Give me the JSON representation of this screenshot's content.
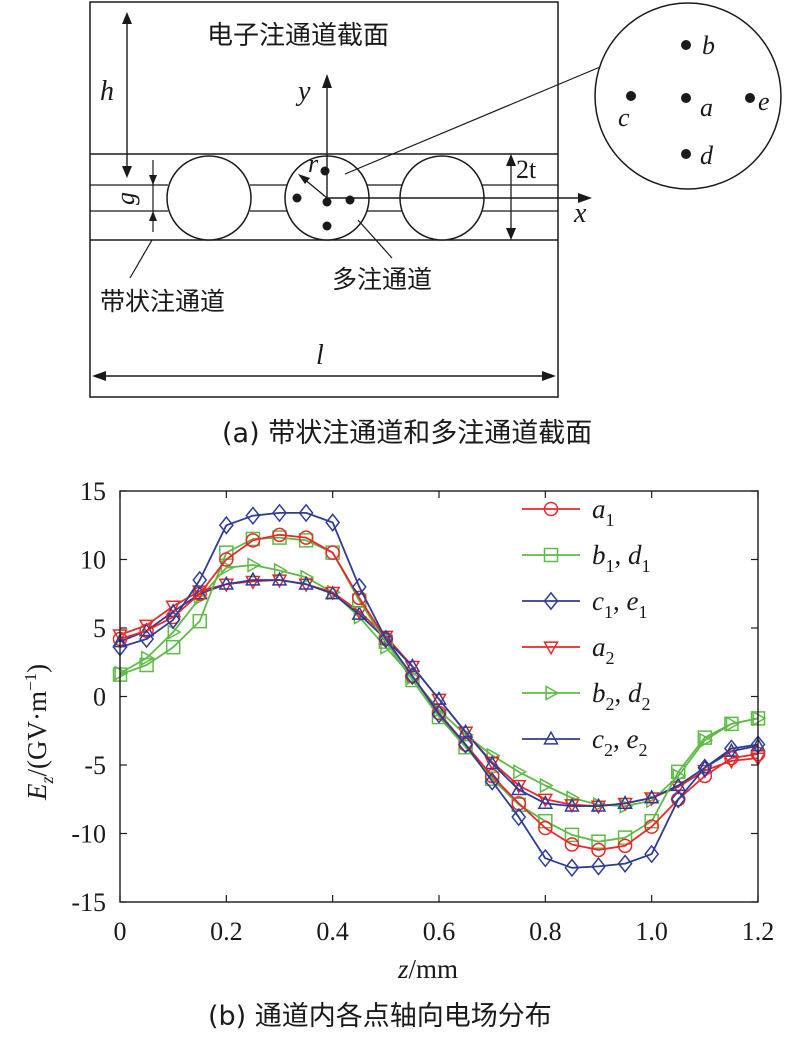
{
  "diagram": {
    "box_title": "电子注通道截面",
    "label_h": "h",
    "label_y": "y",
    "label_r": "r",
    "label_g": "g",
    "label_2t": "2t",
    "label_x": "x",
    "label_l": "l",
    "label_sheet_beam": "带状注通道",
    "label_multi_beam": "多注通道",
    "points": [
      "a",
      "b",
      "c",
      "d",
      "e"
    ],
    "caption": "(a) 带状注通道和多注通道截面"
  },
  "chart_data": {
    "type": "line",
    "title": "",
    "caption": "(b) 通道内各点轴向电场分布",
    "xlabel_var": "z",
    "xlabel_unit": "/mm",
    "ylabel_var": "E",
    "ylabel_sub": "z",
    "ylabel_unit": "/(GV·m",
    "ylabel_sup": "−1",
    "ylabel_close": ")",
    "xlim": [
      0,
      1.2
    ],
    "ylim": [
      -15,
      15
    ],
    "xticks": [
      "0",
      "0.2",
      "0.4",
      "0.6",
      "0.8",
      "1.0",
      "1.2"
    ],
    "yticks": [
      "15",
      "10",
      "5",
      "0",
      "-5",
      "-10",
      "-15"
    ],
    "xtick_values": [
      0,
      0.2,
      0.4,
      0.6,
      0.8,
      1.0,
      1.2
    ],
    "ytick_values": [
      15,
      10,
      5,
      0,
      -5,
      -10,
      -15
    ],
    "x": [
      0,
      0.05,
      0.1,
      0.15,
      0.2,
      0.25,
      0.3,
      0.35,
      0.4,
      0.45,
      0.5,
      0.55,
      0.6,
      0.65,
      0.7,
      0.75,
      0.8,
      0.85,
      0.9,
      0.95,
      1.0,
      1.05,
      1.1,
      1.15,
      1.2
    ],
    "series": [
      {
        "name": "a1",
        "var": "a",
        "sub": "1",
        "var2": "",
        "sub2": "",
        "color": "#e8292a",
        "marker": "circle",
        "values": [
          4.2,
          4.8,
          5.8,
          7.5,
          10.0,
          11.4,
          11.8,
          11.6,
          10.5,
          7.2,
          4.2,
          1.5,
          -1.2,
          -3.5,
          -5.8,
          -7.8,
          -9.6,
          -10.8,
          -11.2,
          -10.9,
          -9.5,
          -7.5,
          -5.8,
          -4.5,
          -4.2
        ]
      },
      {
        "name": "b1, d1",
        "var": "b",
        "sub": "1",
        "var2": "d",
        "sub2": "1",
        "color": "#5dbb46",
        "marker": "square",
        "values": [
          1.6,
          2.3,
          3.6,
          5.5,
          10.5,
          11.5,
          11.6,
          11.4,
          10.5,
          7.0,
          4.0,
          1.2,
          -1.5,
          -3.7,
          -6.0,
          -7.9,
          -9.1,
          -10.1,
          -10.6,
          -10.3,
          -9.1,
          -5.5,
          -3.0,
          -2.0,
          -1.6
        ]
      },
      {
        "name": "c1, e1",
        "var": "c",
        "sub": "1",
        "var2": "e",
        "sub2": "1",
        "color": "#2f3d96",
        "marker": "diamond",
        "values": [
          3.6,
          4.2,
          5.6,
          8.5,
          12.5,
          13.2,
          13.4,
          13.4,
          12.7,
          8.0,
          4.2,
          1.5,
          -1.3,
          -3.5,
          -6.2,
          -8.8,
          -11.8,
          -12.5,
          -12.4,
          -12.2,
          -11.5,
          -7.5,
          -5.2,
          -3.8,
          -3.5
        ]
      },
      {
        "name": "a2",
        "var": "a",
        "sub": "2",
        "var2": "",
        "sub2": "",
        "color": "#e8292a",
        "marker": "tri-down",
        "values": [
          4.5,
          5.2,
          6.6,
          7.7,
          8.2,
          8.4,
          8.5,
          8.2,
          7.6,
          6.2,
          4.4,
          2.2,
          -0.2,
          -2.6,
          -4.8,
          -6.5,
          -7.5,
          -7.9,
          -8.0,
          -7.8,
          -7.4,
          -6.6,
          -5.4,
          -4.7,
          -4.5
        ]
      },
      {
        "name": "b2, d2",
        "var": "b",
        "sub": "2",
        "var2": "d",
        "sub2": "2",
        "color": "#5dbb46",
        "marker": "tri-right",
        "values": [
          1.7,
          2.8,
          4.7,
          7.2,
          9.4,
          9.6,
          9.2,
          8.7,
          7.6,
          5.8,
          3.6,
          1.4,
          -1.0,
          -2.8,
          -4.3,
          -5.5,
          -6.5,
          -7.4,
          -7.9,
          -8.0,
          -7.6,
          -5.8,
          -3.2,
          -2.0,
          -1.6
        ]
      },
      {
        "name": "c2, e2",
        "var": "c",
        "sub": "2",
        "var2": "e",
        "sub2": "2",
        "color": "#2f3d96",
        "marker": "tri-up",
        "values": [
          4.0,
          4.8,
          6.2,
          7.5,
          8.2,
          8.5,
          8.5,
          8.2,
          7.5,
          6.0,
          4.2,
          2.2,
          -0.2,
          -2.6,
          -4.9,
          -6.8,
          -7.8,
          -8.0,
          -8.0,
          -7.8,
          -7.4,
          -6.5,
          -5.2,
          -4.0,
          -3.6
        ]
      }
    ]
  }
}
